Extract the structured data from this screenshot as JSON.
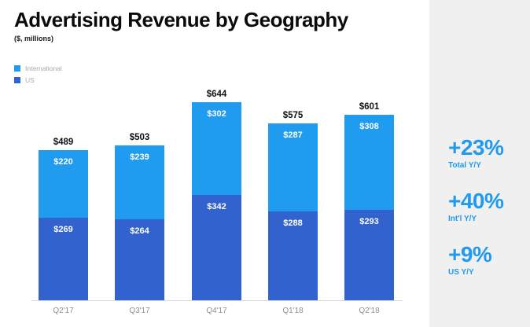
{
  "header": {
    "title": "Advertising Revenue by Geography",
    "subtitle": "($, millions)"
  },
  "legend": {
    "items": [
      {
        "label": "International",
        "color": "#1f9bf0"
      },
      {
        "label": "US",
        "color": "#3162cd"
      }
    ]
  },
  "chart_data": {
    "type": "bar",
    "stacked": true,
    "title": "Advertising Revenue by Geography",
    "units": "$, millions",
    "value_prefix": "$",
    "categories": [
      "Q2'17",
      "Q3'17",
      "Q4'17",
      "Q1'18",
      "Q2'18"
    ],
    "series": [
      {
        "name": "US",
        "color": "#3162cd",
        "values": [
          269,
          264,
          342,
          288,
          293
        ]
      },
      {
        "name": "International",
        "color": "#1f9bf0",
        "values": [
          220,
          239,
          302,
          287,
          308
        ]
      }
    ],
    "totals": [
      489,
      503,
      644,
      575,
      601
    ],
    "total_labels": [
      "$489",
      "$503",
      "$644",
      "$575",
      "$601"
    ],
    "ylim": [
      0,
      660
    ],
    "grid": false,
    "legend_position": "top-left",
    "axis_line_color": "#d8d8d8"
  },
  "stats": [
    {
      "value": "+23%",
      "label": "Total Y/Y"
    },
    {
      "value": "+40%",
      "label": "Int'l Y/Y"
    },
    {
      "value": "+9%",
      "label": "US Y/Y"
    }
  ],
  "colors": {
    "international": "#1f9bf0",
    "us": "#3162cd",
    "stats_blue": "#1e9bf0",
    "panel_bg": "#f0f0f0"
  }
}
